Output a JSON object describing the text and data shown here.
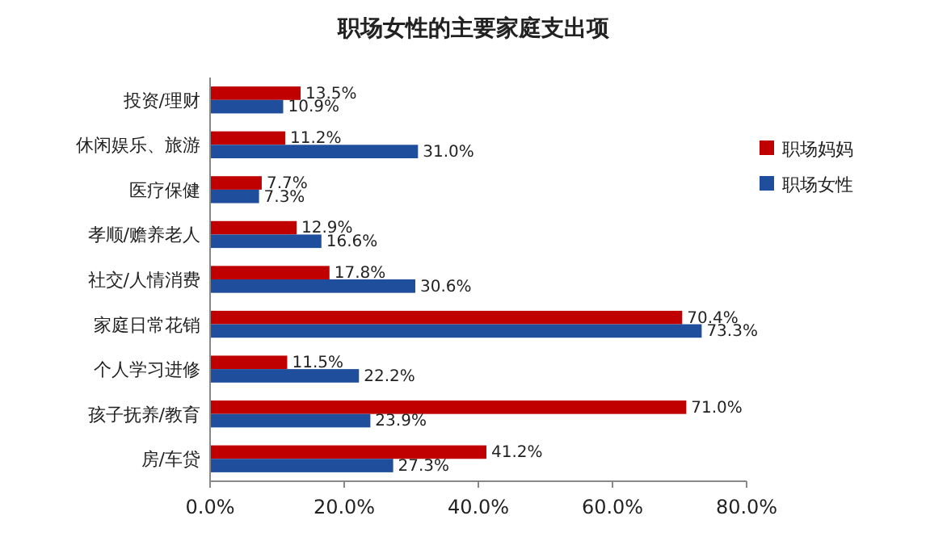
{
  "chart_data": {
    "type": "bar",
    "orientation": "horizontal",
    "title": "职场女性的主要家庭支出项",
    "categories": [
      "投资/理财",
      "休闲娱乐、旅游",
      "医疗保健",
      "孝顺/赡养老人",
      "社交/人情消费",
      "家庭日常花销",
      "个人学习进修",
      "孩子抚养/教育",
      "房/车贷"
    ],
    "series": [
      {
        "name": "职场妈妈",
        "color": "#c00000",
        "values": [
          13.5,
          11.2,
          7.7,
          12.9,
          17.8,
          70.4,
          11.5,
          71.0,
          41.2
        ],
        "value_labels": [
          "13.5%",
          "11.2%",
          "7.7%",
          "12.9%",
          "17.8%",
          "70.4%",
          "11.5%",
          "71.0%",
          "41.2%"
        ]
      },
      {
        "name": "职场女性",
        "color": "#1f4e9c",
        "values": [
          10.9,
          31.0,
          7.3,
          16.6,
          30.6,
          73.3,
          22.2,
          23.9,
          27.3
        ],
        "value_labels": [
          "10.9%",
          "31.0%",
          "7.3%",
          "16.6%",
          "30.6%",
          "73.3%",
          "22.2%",
          "23.9%",
          "27.3%"
        ]
      }
    ],
    "xlim": [
      0,
      80
    ],
    "xticks": [
      {
        "value": 0,
        "label": "0.0%"
      },
      {
        "value": 20,
        "label": "20.0%"
      },
      {
        "value": 40,
        "label": "40.0%"
      },
      {
        "value": 60,
        "label": "60.0%"
      },
      {
        "value": 80,
        "label": "80.0%"
      }
    ],
    "grid": false,
    "legend": "right"
  }
}
